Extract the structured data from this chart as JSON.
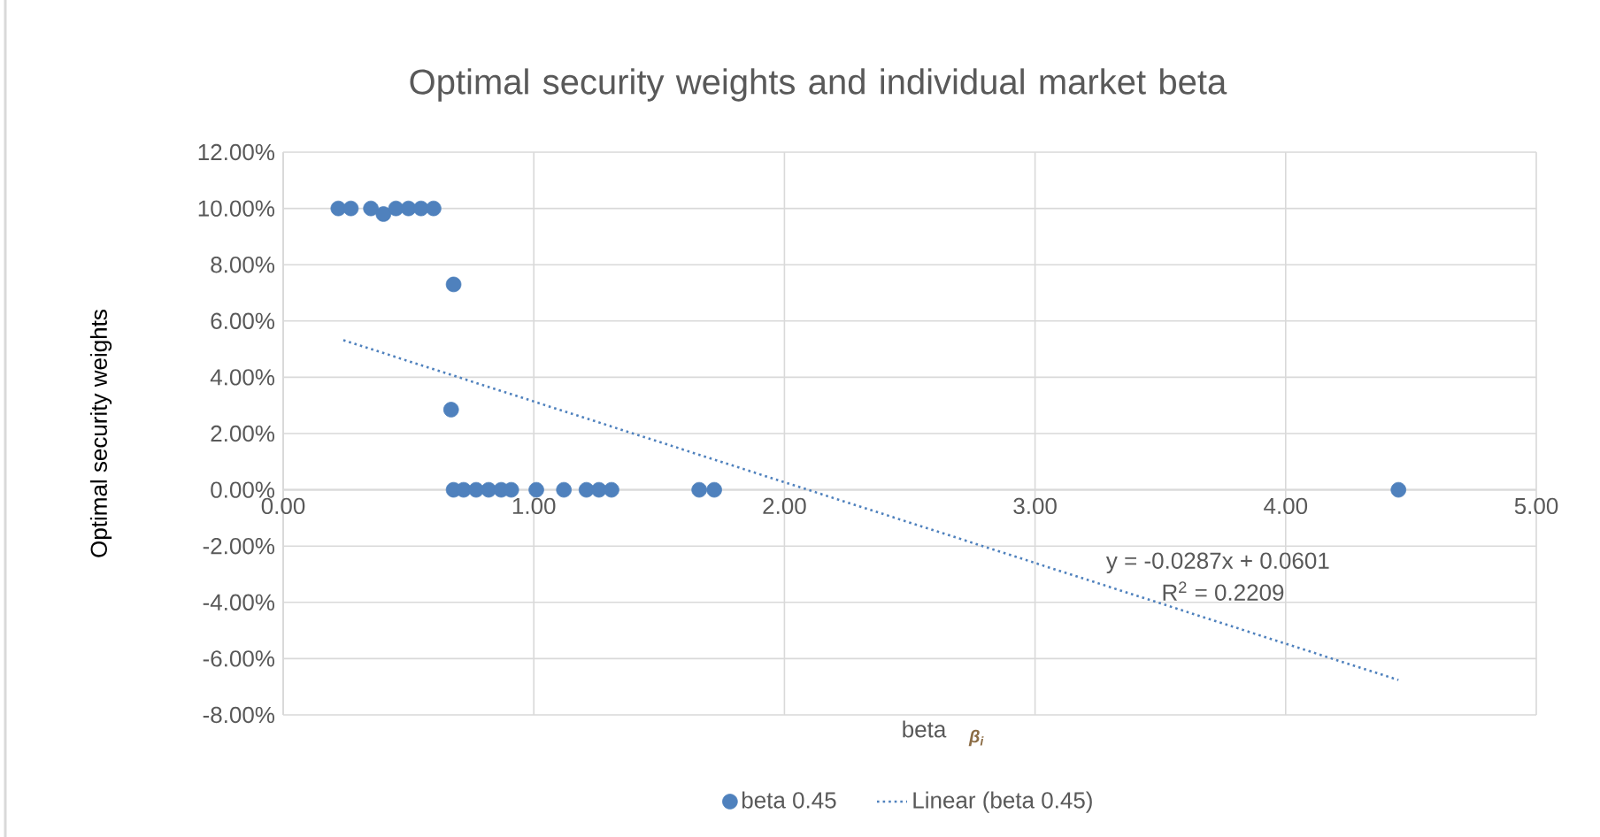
{
  "chart_data": {
    "type": "scatter",
    "title": "Optimal security weights and  individual market beta",
    "xlabel": "beta",
    "ylabel": "Optimal security weights",
    "series": [
      {
        "name": "beta 0.45",
        "color": "#4f81bd",
        "marker": "circle",
        "x": [
          0.22,
          0.27,
          0.35,
          0.4,
          0.45,
          0.5,
          0.55,
          0.6,
          0.68,
          0.67,
          0.68,
          0.72,
          0.77,
          0.82,
          0.87,
          0.91,
          1.01,
          1.12,
          1.21,
          1.26,
          1.31,
          1.66,
          1.72,
          4.45
        ],
        "values": [
          0.1,
          0.1,
          0.1,
          0.098,
          0.1,
          0.1,
          0.1,
          0.1,
          0.073,
          0.0285,
          0,
          0,
          0,
          0,
          0,
          0,
          0,
          0,
          0,
          0,
          0,
          0,
          0,
          0
        ]
      },
      {
        "name": "Linear (beta 0.45)",
        "type": "line",
        "color": "#4f81bd",
        "marker": "none",
        "line_style": "dotted",
        "x": [
          0.24,
          4.45
        ],
        "values": [
          0.0532,
          -0.0676
        ]
      }
    ],
    "annotations": [
      "β$_{i}$",
      "y = -0.0287x + 0.0601",
      "R$^{2}$ = 0.2209"
    ],
    "xlim": [
      0,
      5
    ],
    "ylim": [
      -0.08,
      0.12
    ],
    "xticks": [
      {
        "value": 0,
        "label": "0.00"
      },
      {
        "value": 1,
        "label": "1.00"
      },
      {
        "value": 2,
        "label": "2.00"
      },
      {
        "value": 3,
        "label": "3.00"
      },
      {
        "value": 4,
        "label": "4.00"
      },
      {
        "value": 5,
        "label": "5.00"
      }
    ],
    "yticks": [
      {
        "value": -0.08,
        "label": "-8.00%"
      },
      {
        "value": -0.06,
        "label": "-6.00%"
      },
      {
        "value": -0.04,
        "label": "-4.00%"
      },
      {
        "value": -0.02,
        "label": "-2.00%"
      },
      {
        "value": 0,
        "label": "0.00%"
      },
      {
        "value": 0.02,
        "label": "2.00%"
      },
      {
        "value": 0.04,
        "label": "4.00%"
      },
      {
        "value": 0.06,
        "label": "6.00%"
      },
      {
        "value": 0.08,
        "label": "8.00%"
      },
      {
        "value": 0.1,
        "label": "10.00%"
      },
      {
        "value": 0.12,
        "label": "12.00%"
      }
    ],
    "grid": true,
    "legend": "bottom"
  }
}
